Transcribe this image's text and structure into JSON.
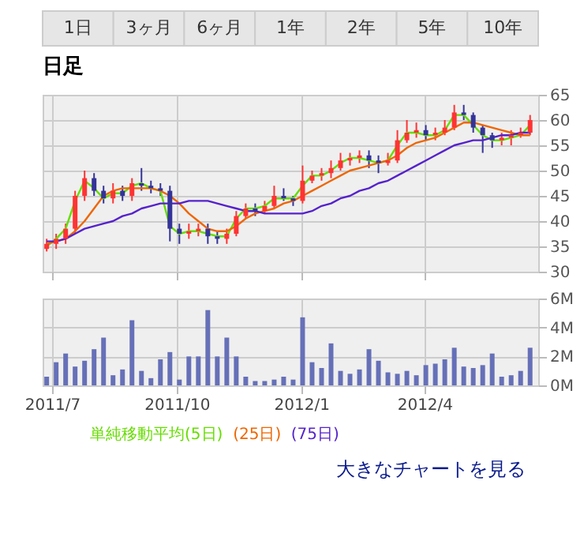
{
  "chart_data": [
    {
      "type": "candlestick",
      "title": "日足",
      "annotations": [
        "1日",
        "3ヶ月",
        "6ヶ月",
        "1年",
        "2年",
        "5年",
        "10年"
      ],
      "x": [
        "2011-06-27",
        "2011-07-04",
        "2011-07-11",
        "2011-07-18",
        "2011-07-25",
        "2011-08-01",
        "2011-08-08",
        "2011-08-15",
        "2011-08-22",
        "2011-08-29",
        "2011-09-05",
        "2011-09-12",
        "2011-09-19",
        "2011-09-26",
        "2011-10-03",
        "2011-10-10",
        "2011-10-17",
        "2011-10-24",
        "2011-10-31",
        "2011-11-07",
        "2011-11-14",
        "2011-11-21",
        "2011-11-28",
        "2011-12-05",
        "2011-12-12",
        "2011-12-19",
        "2011-12-26",
        "2012-01-02",
        "2012-01-09",
        "2012-01-16",
        "2012-01-23",
        "2012-01-30",
        "2012-02-06",
        "2012-02-13",
        "2012-02-20",
        "2012-02-27",
        "2012-03-05",
        "2012-03-12",
        "2012-03-19",
        "2012-03-26",
        "2012-04-02",
        "2012-04-09",
        "2012-04-16",
        "2012-04-23",
        "2012-04-30",
        "2012-05-07",
        "2012-05-14",
        "2012-05-21",
        "2012-05-28",
        "2012-06-04",
        "2012-06-11",
        "2012-06-18"
      ],
      "ohlc": [
        [
          34.5,
          36.5,
          34,
          35.5
        ],
        [
          35.5,
          37.5,
          34.5,
          36.5
        ],
        [
          36.5,
          39.5,
          35.5,
          38.5
        ],
        [
          38.5,
          46,
          37.5,
          45
        ],
        [
          45,
          50,
          44,
          48.5
        ],
        [
          48.5,
          49.5,
          45,
          46
        ],
        [
          46,
          47,
          43.5,
          44.5
        ],
        [
          44.5,
          47.5,
          43.5,
          46
        ],
        [
          46,
          47,
          44,
          45
        ],
        [
          45,
          48.5,
          44,
          47.5
        ],
        [
          47.5,
          50.5,
          46,
          47
        ],
        [
          47,
          48,
          45.5,
          46.5
        ],
        [
          46.5,
          47.5,
          45,
          46
        ],
        [
          46,
          47,
          36,
          38.5
        ],
        [
          38.5,
          39.5,
          35.5,
          37.5
        ],
        [
          37.5,
          39.5,
          36.5,
          38
        ],
        [
          38,
          39.5,
          37,
          38.5
        ],
        [
          38.5,
          39.5,
          35.5,
          37
        ],
        [
          37,
          38,
          35.5,
          36.5
        ],
        [
          36.5,
          38.5,
          35.5,
          37.5
        ],
        [
          37.5,
          42,
          37,
          41
        ],
        [
          41,
          43.5,
          40.5,
          42.5
        ],
        [
          42.5,
          43.5,
          41,
          42
        ],
        [
          42,
          44,
          41.5,
          43
        ],
        [
          43,
          47,
          42.5,
          45
        ],
        [
          45,
          46.5,
          44,
          44.5
        ],
        [
          44.5,
          45,
          43,
          44
        ],
        [
          44,
          51,
          43.5,
          48
        ],
        [
          48,
          50,
          47.5,
          49
        ],
        [
          49,
          50.5,
          48,
          49.5
        ],
        [
          49.5,
          52,
          48.5,
          50.5
        ],
        [
          50.5,
          53.5,
          50,
          52
        ],
        [
          52,
          53.5,
          51,
          52.5
        ],
        [
          52.5,
          54,
          51.5,
          53
        ],
        [
          53,
          54,
          50.5,
          52
        ],
        [
          52,
          53,
          49.5,
          51.5
        ],
        [
          51.5,
          53.5,
          51,
          52
        ],
        [
          52,
          58,
          51.5,
          56
        ],
        [
          56,
          60,
          55.5,
          57.5
        ],
        [
          57.5,
          59.5,
          56.5,
          58
        ],
        [
          58,
          59,
          56,
          57
        ],
        [
          57,
          58.5,
          56,
          57.5
        ],
        [
          57.5,
          60,
          57,
          58.5
        ],
        [
          58.5,
          63,
          58,
          61.5
        ],
        [
          61.5,
          63,
          60,
          61
        ],
        [
          61,
          61.5,
          57.5,
          58.5
        ],
        [
          58.5,
          59,
          53.5,
          57
        ],
        [
          57,
          57.5,
          54.5,
          56
        ],
        [
          56,
          57.5,
          55,
          56.5
        ],
        [
          56.5,
          58,
          55,
          57
        ],
        [
          57,
          58.5,
          56.5,
          57.5
        ],
        [
          57.5,
          61,
          57,
          60
        ]
      ],
      "colors": [
        "#ff3333",
        "#ff3333",
        "#ff3333",
        "#ff3333",
        "#ff3333",
        "#333399",
        "#333399",
        "#ff3333",
        "#333399",
        "#ff3333",
        "#333399",
        "#333399",
        "#333399",
        "#333399",
        "#333399",
        "#ff3333",
        "#ff3333",
        "#333399",
        "#333399",
        "#ff3333",
        "#ff3333",
        "#ff3333",
        "#333399",
        "#ff3333",
        "#ff3333",
        "#333399",
        "#333399",
        "#ff3333",
        "#ff3333",
        "#ff3333",
        "#ff3333",
        "#ff3333",
        "#ff3333",
        "#ff3333",
        "#333399",
        "#333399",
        "#ff3333",
        "#ff3333",
        "#ff3333",
        "#ff3333",
        "#333399",
        "#ff3333",
        "#ff3333",
        "#ff3333",
        "#333399",
        "#333399",
        "#333399",
        "#333399",
        "#ff3333",
        "#ff3333",
        "#ff3333",
        "#ff3333"
      ],
      "series": [
        {
          "type": "line",
          "name": "単純移動平均(5日)",
          "color": "#66dd00",
          "values": [
            35,
            36.5,
            38.5,
            44,
            48,
            46.5,
            44.5,
            45.5,
            45.5,
            47,
            47.5,
            46.5,
            46,
            39,
            37.5,
            38,
            38,
            37.5,
            37,
            37,
            40.5,
            42.5,
            42.5,
            43,
            44.5,
            44.5,
            44.5,
            47,
            49,
            49,
            50,
            51.5,
            52.5,
            52.5,
            52,
            51.5,
            52,
            55,
            57.5,
            57.5,
            57,
            57,
            58,
            61,
            61,
            59,
            57,
            56,
            56,
            56.5,
            57,
            59
          ]
        },
        {
          "type": "line",
          "name": "(25日)",
          "color": "#ee6600",
          "values": [
            35.5,
            36,
            36.5,
            38,
            40,
            42.5,
            45,
            46,
            46.5,
            46.5,
            46.5,
            46.5,
            46,
            45,
            43.5,
            41.5,
            40,
            38.5,
            38,
            38,
            39,
            40.5,
            41.5,
            42,
            42.5,
            43.5,
            44,
            45,
            46,
            47,
            48,
            49,
            50,
            50.5,
            51,
            51.5,
            52,
            53,
            54.5,
            55.5,
            56,
            56.5,
            57.5,
            58.5,
            59.5,
            59.5,
            59,
            58.5,
            58,
            57.5,
            57,
            57
          ]
        },
        {
          "type": "line",
          "name": "(75日)",
          "color": "#5522cc",
          "values": [
            36,
            36,
            36.5,
            37.5,
            38.5,
            39,
            39.5,
            40,
            41,
            41.5,
            42.5,
            43,
            43.5,
            43.5,
            43.5,
            44,
            44,
            44,
            43.5,
            43,
            42.5,
            42,
            42,
            41.5,
            41.5,
            41.5,
            41.5,
            41.5,
            42,
            43,
            43.5,
            44.5,
            45,
            46,
            46.5,
            47.5,
            48,
            49,
            50,
            51,
            52,
            53,
            54,
            55,
            55.5,
            56,
            56,
            56.5,
            57,
            57,
            57.5,
            57.5
          ]
        }
      ],
      "xlim": [
        "2011-06-24",
        "2012-06-24"
      ],
      "xticks": [
        {
          "value": "2011-07-01",
          "label": null
        },
        {
          "value": "2011-10-01",
          "label": null
        },
        {
          "value": "2012-01-01",
          "label": null
        },
        {
          "value": "2012-04-01",
          "label": null
        }
      ],
      "ylim": [
        30,
        65
      ],
      "yticks": [
        30,
        35,
        40,
        45,
        50,
        55,
        60,
        65
      ],
      "grid": true,
      "legend": "bottom",
      "tick_labels": "y"
    },
    {
      "type": "bar",
      "color": "#6670b8",
      "annotations": [
        "大きなチャートを見る"
      ],
      "x": [
        "2011-06-27",
        "2011-07-04",
        "2011-07-11",
        "2011-07-18",
        "2011-07-25",
        "2011-08-01",
        "2011-08-08",
        "2011-08-15",
        "2011-08-22",
        "2011-08-29",
        "2011-09-05",
        "2011-09-12",
        "2011-09-19",
        "2011-09-26",
        "2011-10-03",
        "2011-10-10",
        "2011-10-17",
        "2011-10-24",
        "2011-10-31",
        "2011-11-07",
        "2011-11-14",
        "2011-11-21",
        "2011-11-28",
        "2011-12-05",
        "2011-12-12",
        "2011-12-19",
        "2011-12-26",
        "2012-01-02",
        "2012-01-09",
        "2012-01-16",
        "2012-01-23",
        "2012-01-30",
        "2012-02-06",
        "2012-02-13",
        "2012-02-20",
        "2012-02-27",
        "2012-03-05",
        "2012-03-12",
        "2012-03-19",
        "2012-03-26",
        "2012-04-02",
        "2012-04-09",
        "2012-04-16",
        "2012-04-23",
        "2012-04-30",
        "2012-05-07",
        "2012-05-14",
        "2012-05-21",
        "2012-05-28",
        "2012-06-04",
        "2012-06-11",
        "2012-06-18"
      ],
      "values": [
        0.6,
        1.6,
        2.2,
        1.3,
        1.7,
        2.5,
        3.3,
        0.7,
        1.1,
        4.5,
        1.0,
        0.5,
        1.8,
        2.3,
        0.4,
        2.0,
        2.0,
        5.2,
        2.0,
        3.3,
        2.0,
        0.6,
        0.3,
        0.3,
        0.4,
        0.6,
        0.4,
        4.7,
        1.6,
        1.2,
        2.9,
        1.0,
        0.8,
        1.1,
        2.5,
        1.7,
        0.9,
        0.8,
        1.0,
        0.7,
        1.4,
        1.5,
        1.8,
        2.6,
        1.3,
        1.2,
        1.4,
        2.2,
        0.6,
        0.7,
        1.0,
        2.6
      ],
      "xlim": [
        "2011-06-24",
        "2012-06-24"
      ],
      "xticks": [
        {
          "value": "2011-07-01",
          "label": "2011/7"
        },
        {
          "value": "2011-10-01",
          "label": "2011/10"
        },
        {
          "value": "2012-01-01",
          "label": "2012/1"
        },
        {
          "value": "2012-04-01",
          "label": "2012/4"
        }
      ],
      "ylim": [
        0,
        6
      ],
      "yticks": [
        {
          "value": 0,
          "label": "0M"
        },
        {
          "value": 2,
          "label": "2M"
        },
        {
          "value": 4,
          "label": "4M"
        },
        {
          "value": 6,
          "label": "6M"
        }
      ],
      "grid": true
    }
  ]
}
